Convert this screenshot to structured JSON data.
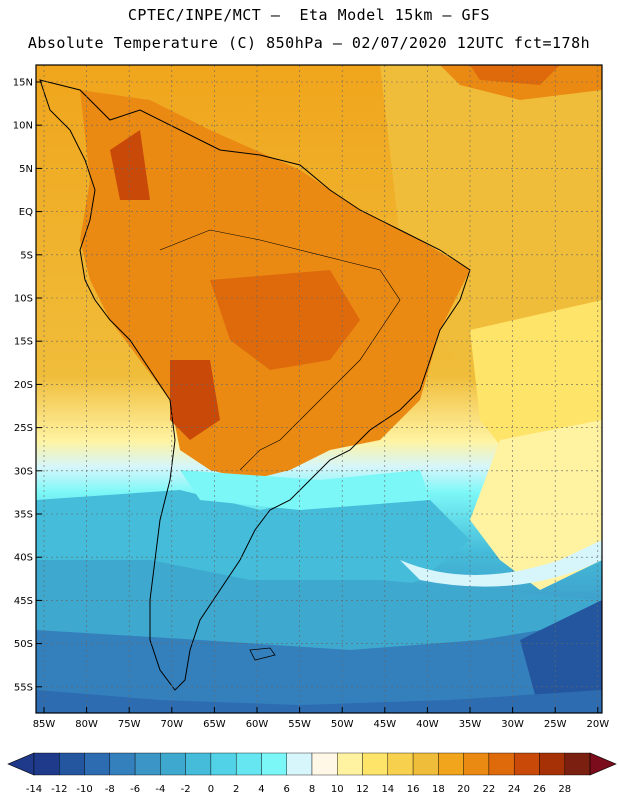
{
  "title": {
    "line1": "CPTEC/INPE/MCT –  Eta Model 15km – GFS",
    "line2": "Absolute Temperature (C) 850hPa – 02/07/2020 12UTC fct=178h"
  },
  "axes": {
    "lat_labels": [
      "15N",
      "10N",
      "5N",
      "EQ",
      "5S",
      "10S",
      "15S",
      "20S",
      "25S",
      "30S",
      "35S",
      "40S",
      "45S",
      "50S",
      "55S"
    ],
    "lon_labels": [
      "85W",
      "80W",
      "75W",
      "70W",
      "65W",
      "60W",
      "55W",
      "50W",
      "45W",
      "40W",
      "35W",
      "30W",
      "25W",
      "20W"
    ]
  },
  "colorbar": {
    "labels": [
      "-14",
      "-12",
      "-10",
      "-8",
      "-6",
      "-4",
      "-2",
      "0",
      "2",
      "4",
      "6",
      "8",
      "10",
      "12",
      "14",
      "16",
      "18",
      "20",
      "22",
      "24",
      "26",
      "28"
    ],
    "colors": [
      "#1f3a8a",
      "#2456a0",
      "#2d6cb0",
      "#3480bd",
      "#3b95c6",
      "#3fa8cf",
      "#45bcd9",
      "#52d2e6",
      "#66e6f0",
      "#7cf7f7",
      "#d6f6fb",
      "#fff8e6",
      "#fff3a2",
      "#ffe46a",
      "#f7d04d",
      "#f0bd3a",
      "#f0a51c",
      "#eb8a13",
      "#df6a0c",
      "#c94a08",
      "#a63106",
      "#7b1f10"
    ],
    "low_color": "#1f3a8a",
    "high_color": "#7b0c1c"
  }
}
